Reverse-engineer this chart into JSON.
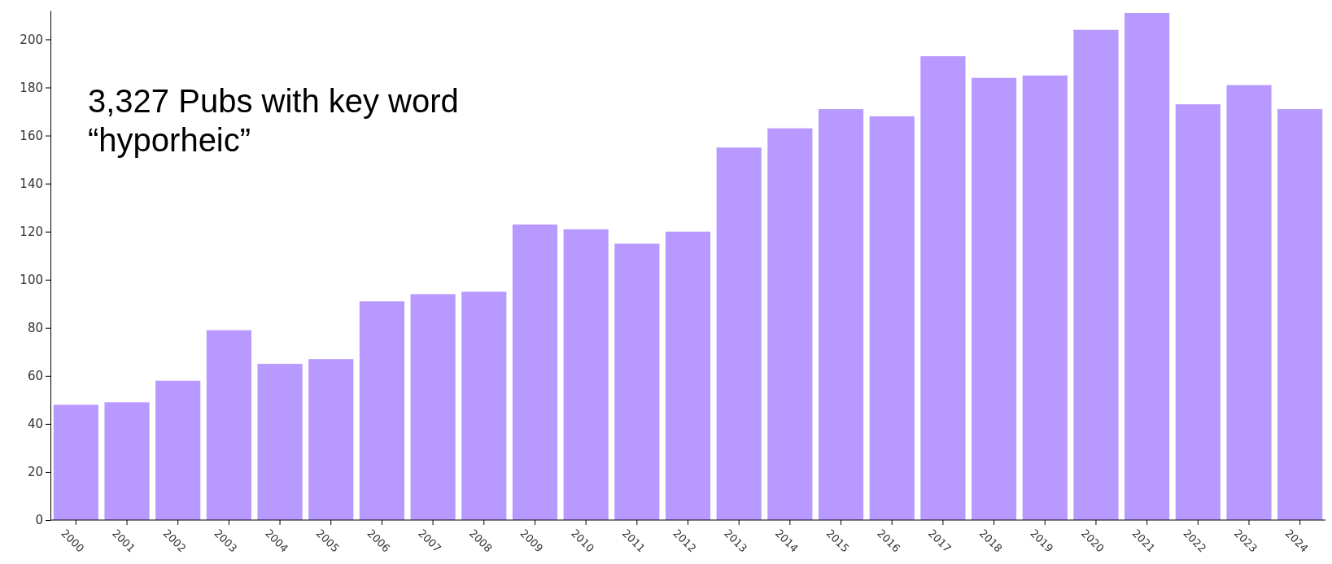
{
  "chart_data": {
    "type": "bar",
    "title": "3,327 Pubs with key word\n“hyporheic”",
    "categories": [
      "2000",
      "2001",
      "2002",
      "2003",
      "2004",
      "2005",
      "2006",
      "2007",
      "2008",
      "2009",
      "2010",
      "2011",
      "2012",
      "2013",
      "2014",
      "2015",
      "2016",
      "2017",
      "2018",
      "2019",
      "2020",
      "2021",
      "2022",
      "2023",
      "2024"
    ],
    "values": [
      48,
      49,
      58,
      79,
      65,
      67,
      91,
      94,
      95,
      123,
      121,
      115,
      120,
      155,
      163,
      171,
      168,
      193,
      184,
      185,
      204,
      211,
      173,
      181,
      171
    ],
    "color": "#b899ff",
    "ylim": [
      0,
      212
    ],
    "yticks": [
      0,
      20,
      40,
      60,
      80,
      100,
      120,
      140,
      160,
      180,
      200
    ],
    "grid": false
  }
}
